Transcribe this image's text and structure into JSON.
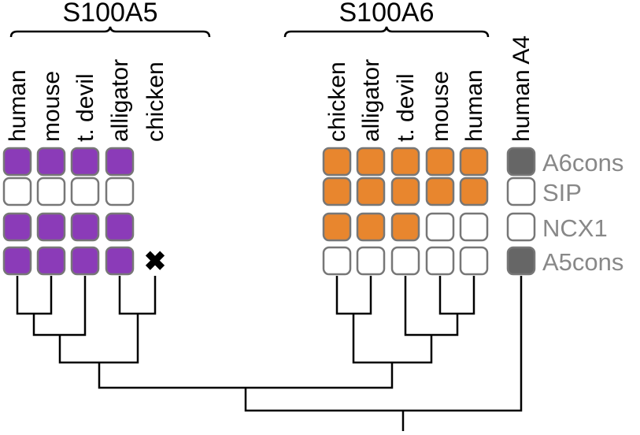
{
  "groups": [
    {
      "label": "S100A5"
    },
    {
      "label": "S100A6"
    }
  ],
  "species": [
    {
      "label": "human"
    },
    {
      "label": "mouse"
    },
    {
      "label": "t. devil"
    },
    {
      "label": "alligator"
    },
    {
      "label": "chicken"
    },
    {
      "label": "chicken"
    },
    {
      "label": "alligator"
    },
    {
      "label": "t. devil"
    },
    {
      "label": "mouse"
    },
    {
      "label": "human"
    },
    {
      "label": "human A4"
    }
  ],
  "rows": [
    {
      "label": "A6cons"
    },
    {
      "label": "SIP"
    },
    {
      "label": "NCX1"
    },
    {
      "label": "A5cons"
    }
  ],
  "cell_states": [
    [
      "A5",
      "A5",
      "A5",
      "A5",
      "none",
      "A6",
      "A6",
      "A6",
      "A6",
      "A6",
      "A4"
    ],
    [
      "empty",
      "empty",
      "empty",
      "empty",
      "none",
      "A6",
      "A6",
      "A6",
      "A6",
      "A6",
      "empty"
    ],
    [
      "A5",
      "A5",
      "A5",
      "A5",
      "none",
      "A6",
      "A6",
      "A6",
      "empty",
      "empty",
      "empty"
    ],
    [
      "A5",
      "A5",
      "A5",
      "A5",
      "lost",
      "empty",
      "empty",
      "empty",
      "empty",
      "empty",
      "A4"
    ]
  ],
  "colors": {
    "A5": "#8b3bb8",
    "A6": "#e8862e",
    "A4": "#666666",
    "empty": "#ffffff",
    "outline": "#777777",
    "row_label": "#888888",
    "tree": "#000000",
    "lost": "#000000"
  },
  "lost_marker": {
    "glyph": "✖"
  }
}
